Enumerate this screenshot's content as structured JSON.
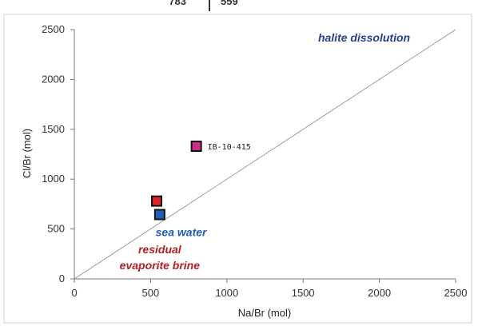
{
  "top_fragment": {
    "left": "783",
    "right": "559"
  },
  "chart_data": {
    "type": "scatter",
    "xlabel": "Na/Br (mol)",
    "ylabel": "Cl/Br (mol)",
    "xlim": [
      0,
      2500
    ],
    "ylim": [
      0,
      2500
    ],
    "xticks": [
      "0",
      "500",
      "1000",
      "1500",
      "2000",
      "2500"
    ],
    "yticks": [
      "0",
      "500",
      "1000",
      "1500",
      "2000",
      "2500"
    ],
    "grid": false,
    "reference_line": {
      "from": [
        0,
        0
      ],
      "to": [
        2500,
        2500
      ],
      "color": "#888888"
    },
    "points": [
      {
        "name": "IB-10-415",
        "x": 800,
        "y": 1330,
        "color": "#d02b8a"
      },
      {
        "name": "",
        "x": 540,
        "y": 780,
        "color": "#e02020"
      },
      {
        "name": "",
        "x": 560,
        "y": 645,
        "color": "#1f5fb8"
      }
    ],
    "annotations": [
      {
        "text": "halite dissolution",
        "x": 1900,
        "y": 2380,
        "color": "#2b3d8f"
      },
      {
        "text": "sea water",
        "x": 700,
        "y": 430,
        "color": "#1f5fb8"
      },
      {
        "text": "residual",
        "x": 560,
        "y": 255,
        "color": "#b22222"
      },
      {
        "text": "evaporite brine",
        "x": 560,
        "y": 95,
        "color": "#b22222"
      }
    ]
  }
}
